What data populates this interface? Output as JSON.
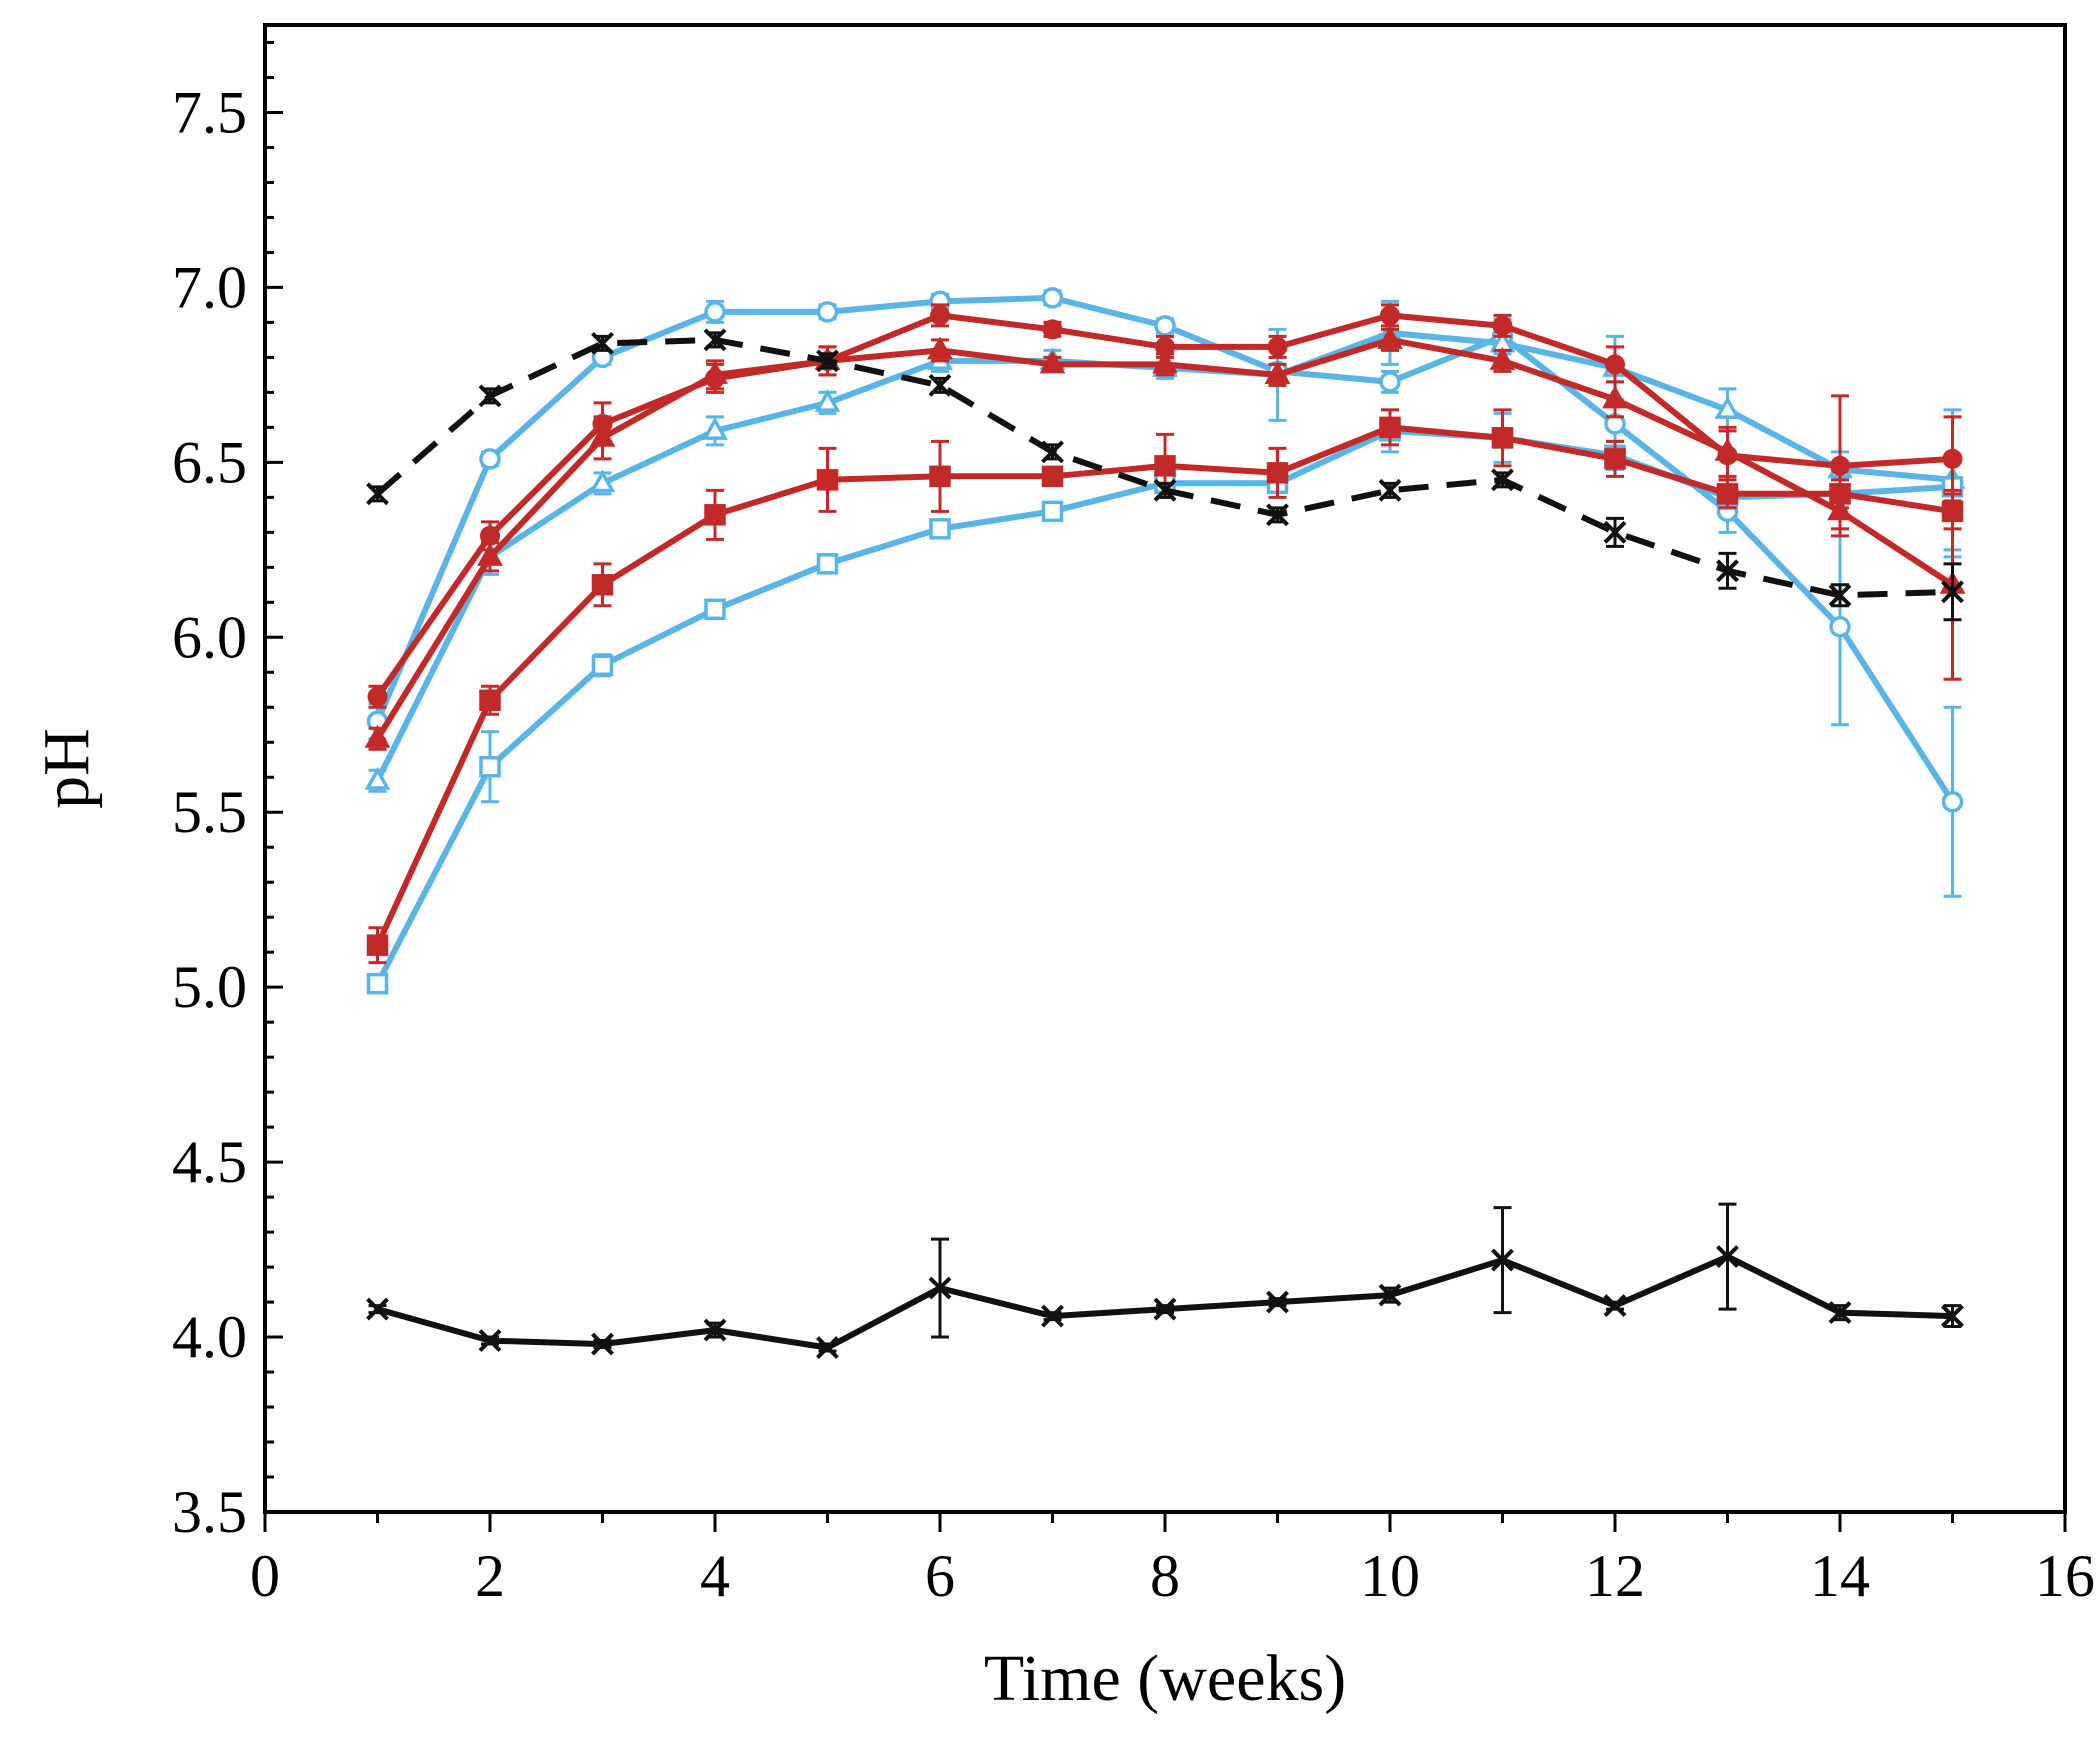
{
  "chart_data": {
    "type": "line",
    "xlabel": "Time (weeks)",
    "ylabel": "pH",
    "xlim": [
      0,
      16
    ],
    "ylim": [
      3.5,
      7.75
    ],
    "xticks": [
      0,
      2,
      4,
      6,
      8,
      10,
      12,
      14,
      16
    ],
    "xtick_labels": [
      "0",
      "2",
      "4",
      "6",
      "8",
      "10",
      "12",
      "14",
      "16"
    ],
    "yticks": [
      3.5,
      4.0,
      4.5,
      5.0,
      5.5,
      6.0,
      6.5,
      7.0,
      7.5
    ],
    "ytick_labels": [
      "3.5",
      "4.0",
      "4.5",
      "5.0",
      "5.5",
      "6.0",
      "6.5",
      "7.0",
      "7.5"
    ],
    "x": [
      1,
      2,
      3,
      4,
      5,
      6,
      7,
      8,
      9,
      10,
      11,
      12,
      13,
      14,
      15
    ],
    "legend": null,
    "series": [
      {
        "name": "blue open circles",
        "color": "#5AB4E5",
        "marker": "circle-open",
        "dash": "solid",
        "values": [
          5.76,
          6.51,
          6.8,
          6.93,
          6.93,
          6.96,
          6.97,
          6.89,
          6.76,
          6.73,
          6.86,
          6.61,
          6.36,
          6.03,
          5.53
        ],
        "errors": [
          0.05,
          0.02,
          0.02,
          0.03,
          0.02,
          0.02,
          0.02,
          0.02,
          0.04,
          0.03,
          0.05,
          0.05,
          0.06,
          0.28,
          0.27
        ]
      },
      {
        "name": "blue open triangles",
        "color": "#5AB4E5",
        "marker": "triangle-open",
        "dash": "solid",
        "values": [
          5.59,
          6.23,
          6.44,
          6.59,
          6.67,
          6.79,
          6.79,
          6.77,
          6.75,
          6.87,
          6.84,
          6.77,
          6.65,
          6.48,
          6.45
        ],
        "errors": [
          0.03,
          0.05,
          0.03,
          0.04,
          0.03,
          0.03,
          0.03,
          0.03,
          0.13,
          0.09,
          0.06,
          0.09,
          0.06,
          0.05,
          0.2
        ]
      },
      {
        "name": "blue open squares",
        "color": "#5AB4E5",
        "marker": "square-open",
        "dash": "solid",
        "values": [
          5.01,
          5.63,
          5.92,
          6.08,
          6.21,
          6.31,
          6.36,
          6.44,
          6.44,
          6.59,
          6.57,
          6.52,
          6.4,
          6.41,
          6.43
        ],
        "errors": [
          0.02,
          0.1,
          0.03,
          0.02,
          0.02,
          0.02,
          0.02,
          0.02,
          0.02,
          0.06,
          0.07,
          0.04,
          0.03,
          0.04,
          0.2
        ]
      },
      {
        "name": "red filled circles",
        "color": "#C22A2A",
        "marker": "circle-filled",
        "dash": "solid",
        "values": [
          5.83,
          6.29,
          6.61,
          6.74,
          6.79,
          6.92,
          6.88,
          6.83,
          6.83,
          6.92,
          6.89,
          6.78,
          6.52,
          6.49,
          6.51
        ],
        "errors": [
          0.03,
          0.04,
          0.06,
          0.04,
          0.04,
          0.03,
          0.02,
          0.03,
          0.03,
          0.03,
          0.03,
          0.05,
          0.07,
          0.2,
          0.12
        ]
      },
      {
        "name": "red filled triangles",
        "color": "#C22A2A",
        "marker": "triangle-filled",
        "dash": "solid",
        "values": [
          5.71,
          6.23,
          6.57,
          6.75,
          6.79,
          6.82,
          6.78,
          6.78,
          6.75,
          6.85,
          6.79,
          6.68,
          6.53,
          6.36,
          6.15
        ],
        "errors": [
          0.03,
          0.04,
          0.06,
          0.04,
          0.04,
          0.03,
          0.02,
          0.03,
          0.03,
          0.03,
          0.03,
          0.05,
          0.07,
          0.05,
          0.27
        ]
      },
      {
        "name": "red filled squares",
        "color": "#C22A2A",
        "marker": "square-filled",
        "dash": "solid",
        "values": [
          5.12,
          5.82,
          6.15,
          6.35,
          6.45,
          6.46,
          6.46,
          6.49,
          6.47,
          6.6,
          6.57,
          6.51,
          6.41,
          6.41,
          6.36
        ],
        "errors": [
          0.05,
          0.04,
          0.06,
          0.07,
          0.09,
          0.1,
          0.02,
          0.09,
          0.07,
          0.05,
          0.08,
          0.05,
          0.04,
          0.04,
          0.05
        ]
      },
      {
        "name": "black dashed crosses",
        "color": "#111111",
        "marker": "cross",
        "dash": "dashed",
        "values": [
          6.41,
          6.69,
          6.84,
          6.85,
          6.79,
          6.72,
          6.53,
          6.42,
          6.35,
          6.42,
          6.45,
          6.3,
          6.19,
          6.12,
          6.13
        ],
        "errors": [
          0.02,
          0.02,
          0.02,
          0.02,
          0.02,
          0.02,
          0.02,
          0.02,
          0.02,
          0.02,
          0.02,
          0.04,
          0.05,
          0.03,
          0.08
        ]
      },
      {
        "name": "black solid crosses",
        "color": "#111111",
        "marker": "cross",
        "dash": "solid",
        "values": [
          4.08,
          3.99,
          3.98,
          4.02,
          3.97,
          4.14,
          4.06,
          4.08,
          4.1,
          4.12,
          4.22,
          4.09,
          4.23,
          4.07,
          4.06
        ],
        "errors": [
          0.01,
          0.01,
          0.01,
          0.02,
          0.01,
          0.14,
          0.01,
          0.01,
          0.01,
          0.02,
          0.15,
          0.01,
          0.15,
          0.02,
          0.03
        ]
      }
    ]
  }
}
